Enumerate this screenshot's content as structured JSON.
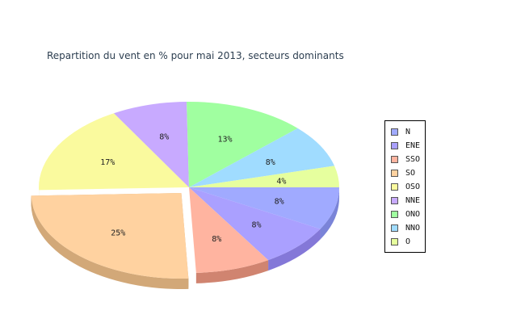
{
  "chart_data": {
    "type": "pie",
    "title": "Repartition du vent en % pour mai 2013, secteurs dominants",
    "style": "3d",
    "legend_position": "right",
    "exploded_slice": "SO",
    "slices": [
      {
        "name": "N",
        "value": 8,
        "label": "8%",
        "color": "#a0aaff",
        "side": "#7a84d8"
      },
      {
        "name": "ENE",
        "value": 8,
        "label": "8%",
        "color": "#aaa0ff",
        "side": "#8478d8"
      },
      {
        "name": "SSO",
        "value": 8,
        "label": "8%",
        "color": "#ffb4a0",
        "side": "#d08470"
      },
      {
        "name": "SO",
        "value": 25,
        "label": "25%",
        "color": "#ffd2a0",
        "side": "#d2a878"
      },
      {
        "name": "OSO",
        "value": 17,
        "label": "17%",
        "color": "#fafa9e",
        "side": "#d2d27a"
      },
      {
        "name": "NNE",
        "value": 8,
        "label": "8%",
        "color": "#c8aaff",
        "side": "#a082d8"
      },
      {
        "name": "ONO",
        "value": 13,
        "label": "13%",
        "color": "#a0ffa0",
        "side": "#7ad27a"
      },
      {
        "name": "NNO",
        "value": 8,
        "label": "8%",
        "color": "#a0dcff",
        "side": "#78b4d8"
      },
      {
        "name": "O",
        "value": 4,
        "label": "4%",
        "color": "#e6ff9e",
        "side": "#bcd278"
      }
    ]
  }
}
